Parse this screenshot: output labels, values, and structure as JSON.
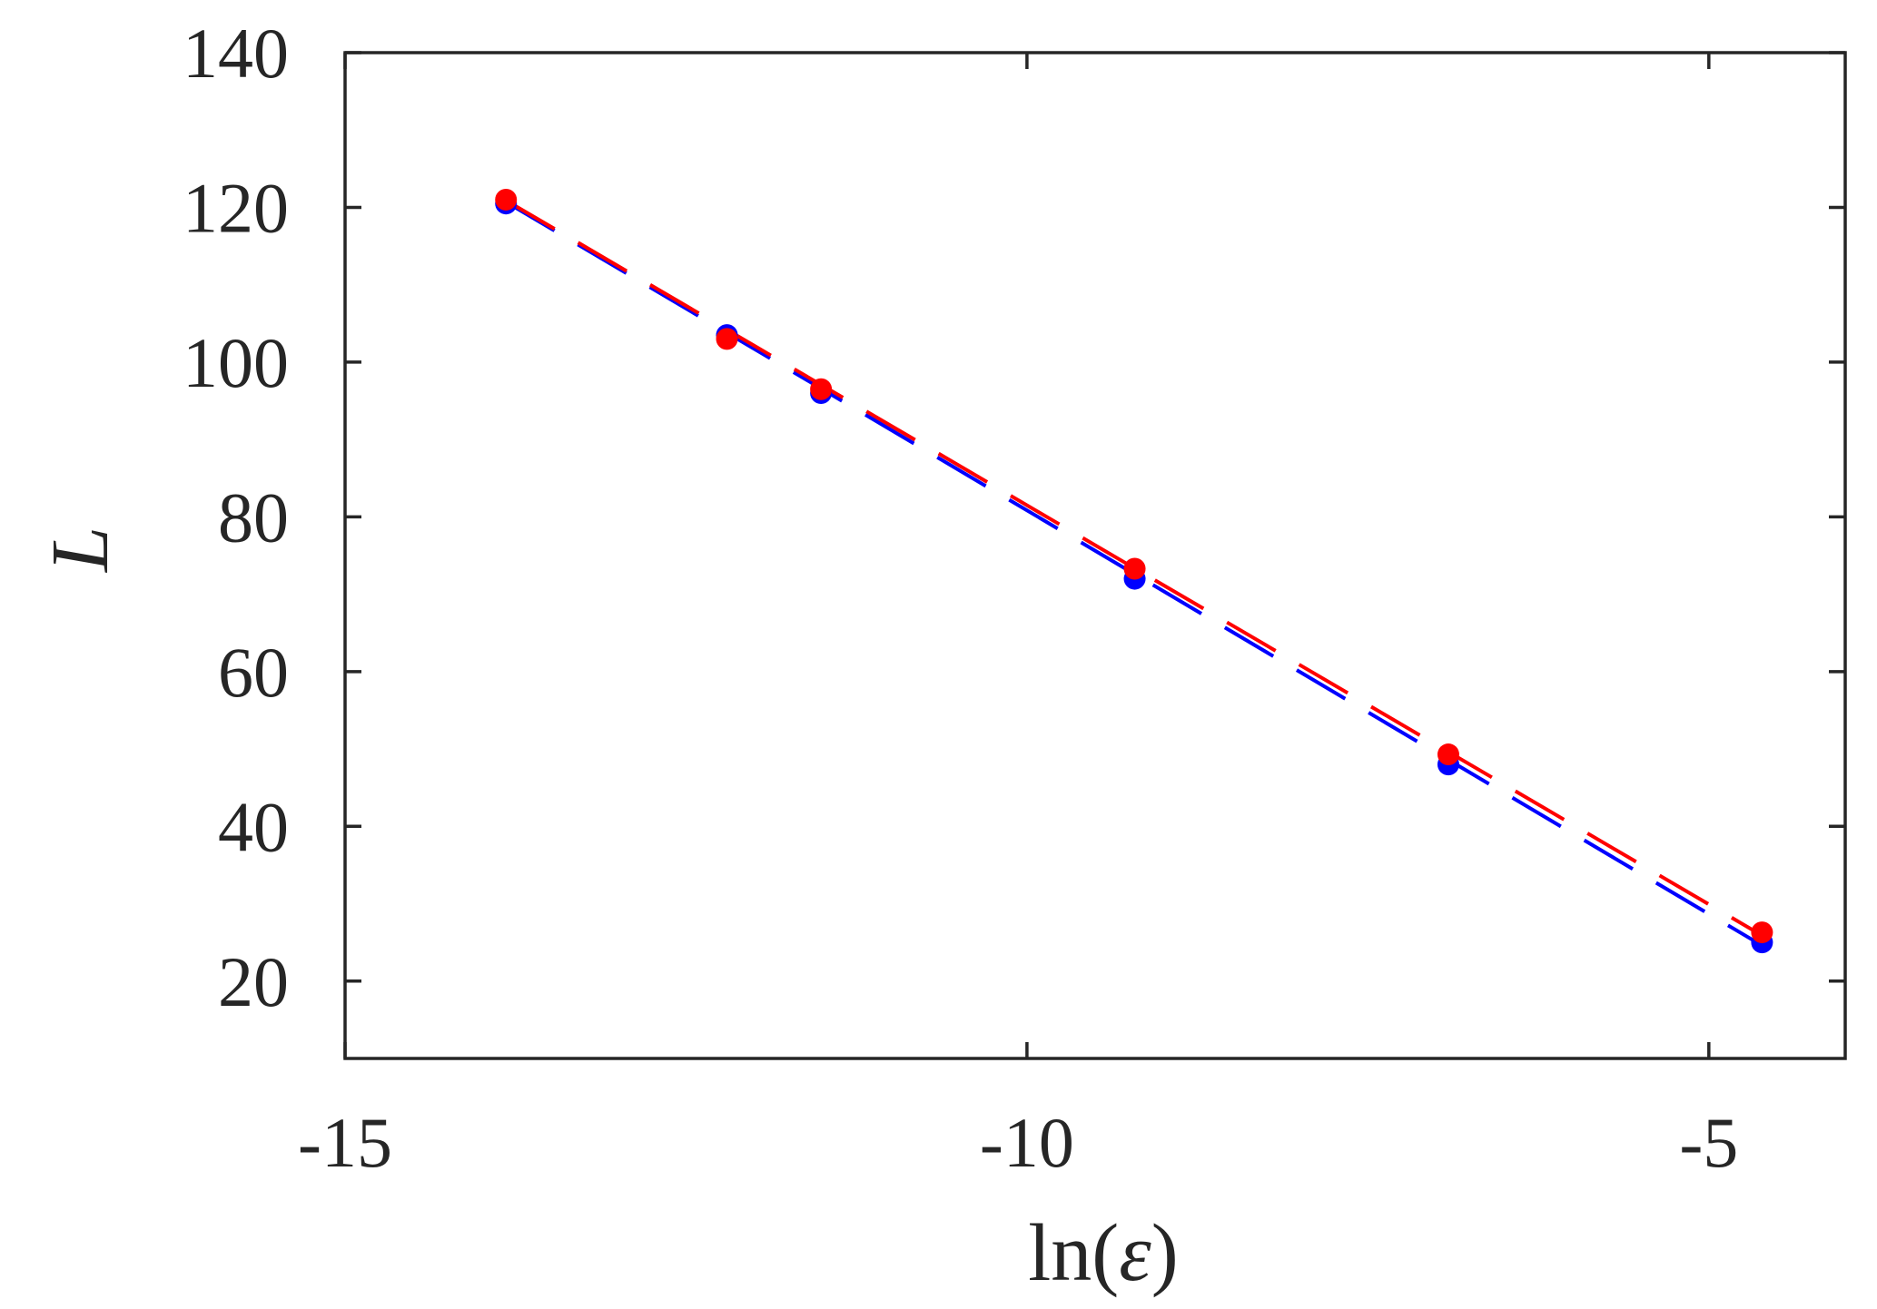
{
  "chart_data": {
    "type": "scatter",
    "title": "",
    "xlabel_prefix": "ln(",
    "xlabel_symbol": "ε",
    "xlabel_suffix": ")",
    "ylabel": "L",
    "xlim": [
      -15,
      -4
    ],
    "ylim": [
      10,
      140
    ],
    "xticks": [
      -15,
      -10,
      -5
    ],
    "xtick_labels": [
      "-15",
      "-10",
      "-5"
    ],
    "yticks": [
      20,
      40,
      60,
      80,
      100,
      120,
      140
    ],
    "ytick_labels": [
      "20",
      "40",
      "60",
      "80",
      "100",
      "120",
      "140"
    ],
    "grid": false,
    "legend": "none",
    "series": [
      {
        "color": "#0000ff",
        "markers": {
          "x": [
            -13.82,
            -12.2,
            -11.51,
            -9.21,
            -6.91,
            -4.61
          ],
          "y": [
            120.5,
            103.5,
            96.0,
            72.0,
            48.0,
            25.0
          ]
        },
        "fit_line": {
          "x": [
            -13.82,
            -4.61
          ],
          "y": [
            120.7,
            24.6
          ]
        }
      },
      {
        "color": "#ff0000",
        "markers": {
          "x": [
            -13.82,
            -12.2,
            -11.51,
            -9.21,
            -6.91,
            -4.61
          ],
          "y": [
            121.0,
            103.0,
            96.5,
            73.3,
            49.3,
            26.3
          ]
        },
        "fit_line": {
          "x": [
            -13.82,
            -4.61
          ],
          "y": [
            120.9,
            25.9
          ]
        }
      }
    ]
  }
}
